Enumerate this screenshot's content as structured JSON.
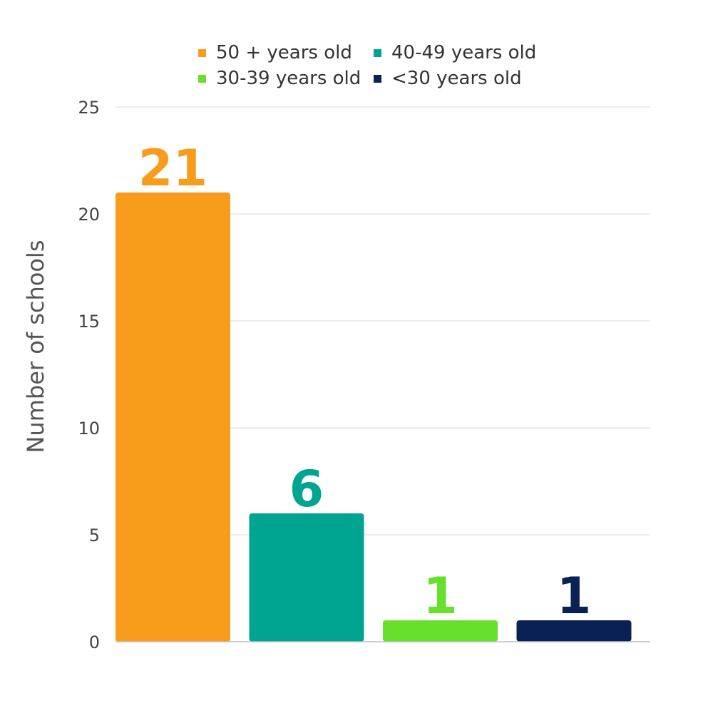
{
  "chart_data": {
    "type": "bar",
    "categories": [
      "50 + years old",
      "40-49 years old",
      "30-39 years old",
      "<30 years old"
    ],
    "values": [
      21,
      6,
      1,
      1
    ],
    "colors": [
      "#F89C1C",
      "#00A591",
      "#66E02B",
      "#0A2156"
    ],
    "data_labels": [
      "21",
      "6",
      "1",
      "1"
    ],
    "ylabel": "Number of schools",
    "ylim": [
      0,
      25
    ],
    "yticks": [
      "0",
      "5",
      "10",
      "15",
      "20",
      "25"
    ],
    "grid": true,
    "legend_position": "top",
    "legend": [
      {
        "label": "50 + years old",
        "color": "#F89C1C"
      },
      {
        "label": "40-49 years old",
        "color": "#00A591"
      },
      {
        "label": "30-39 years old",
        "color": "#66E02B"
      },
      {
        "label": "<30 years old",
        "color": "#0A2156"
      }
    ]
  }
}
